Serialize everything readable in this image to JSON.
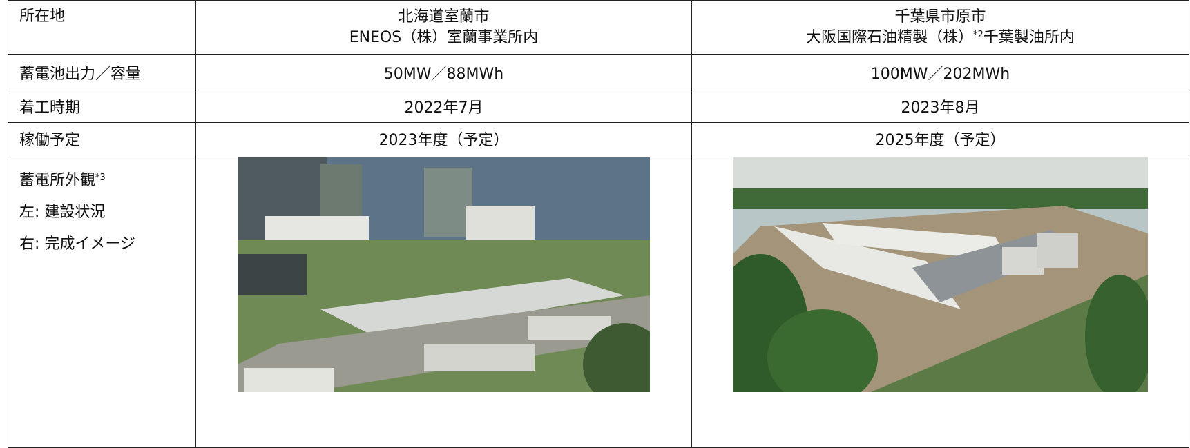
{
  "table": {
    "rows": [
      {
        "label": "所在地",
        "cells": [
          {
            "lines": [
              "北海道室蘭市",
              "ENEOS（株）室蘭事業所内"
            ]
          },
          {
            "lines": [
              "千葉県市原市"
            ],
            "before": "大阪国際石油精製（株）",
            "note": "*2",
            "after": "千葉製油所内"
          }
        ]
      },
      {
        "label": "蓄電池出力／容量",
        "cells": [
          "50MW／88MWh",
          "100MW／202MWh"
        ]
      },
      {
        "label": "着工時期",
        "cells": [
          "2022年7月",
          "2023年8月"
        ]
      },
      {
        "label": "稼働予定",
        "cells": [
          "2023年度（予定）",
          "2025年度（予定）"
        ]
      },
      {
        "label": "蓄電所外観",
        "note": "*3",
        "lines": [
          "左: 建設状況",
          "右: 完成イメージ"
        ]
      }
    ]
  }
}
